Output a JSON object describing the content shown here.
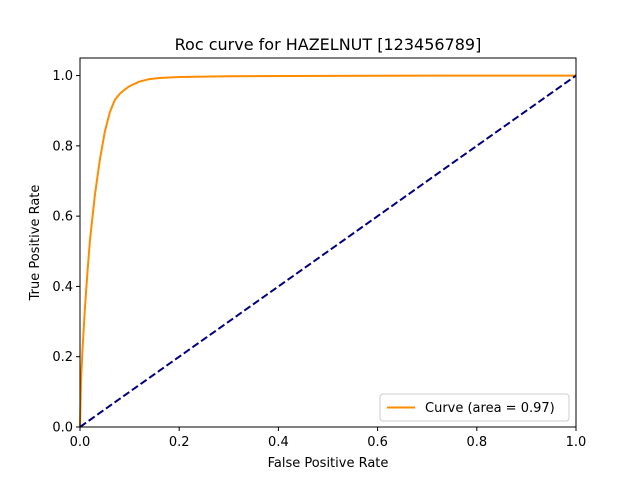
{
  "chart_data": {
    "type": "line",
    "title": "Roc curve for HAZELNUT [123456789]",
    "xlabel": "False Positive Rate",
    "ylabel": "True Positive Rate",
    "xlim": [
      0,
      1
    ],
    "ylim": [
      0,
      1.05
    ],
    "x_ticks": [
      "0.0",
      "0.2",
      "0.4",
      "0.6",
      "0.8",
      "1.0"
    ],
    "y_ticks": [
      "0.0",
      "0.2",
      "0.4",
      "0.6",
      "0.8",
      "1.0"
    ],
    "grid": false,
    "legend_position": "lower-right",
    "series": [
      {
        "name": "Curve (area = 0.97)",
        "color": "#ff8c00",
        "style": "solid",
        "x": [
          0.0,
          0.002,
          0.005,
          0.01,
          0.015,
          0.02,
          0.03,
          0.04,
          0.05,
          0.06,
          0.07,
          0.08,
          0.09,
          0.1,
          0.12,
          0.14,
          0.16,
          0.2,
          0.3,
          0.5,
          0.7,
          1.0
        ],
        "y": [
          0.0,
          0.13,
          0.22,
          0.34,
          0.44,
          0.53,
          0.66,
          0.76,
          0.84,
          0.895,
          0.93,
          0.948,
          0.96,
          0.97,
          0.983,
          0.99,
          0.993,
          0.996,
          0.998,
          0.999,
          1.0,
          1.0
        ]
      },
      {
        "name": "",
        "color": "#000080",
        "style": "dashed",
        "x": [
          0,
          1
        ],
        "y": [
          0,
          1
        ]
      }
    ]
  }
}
